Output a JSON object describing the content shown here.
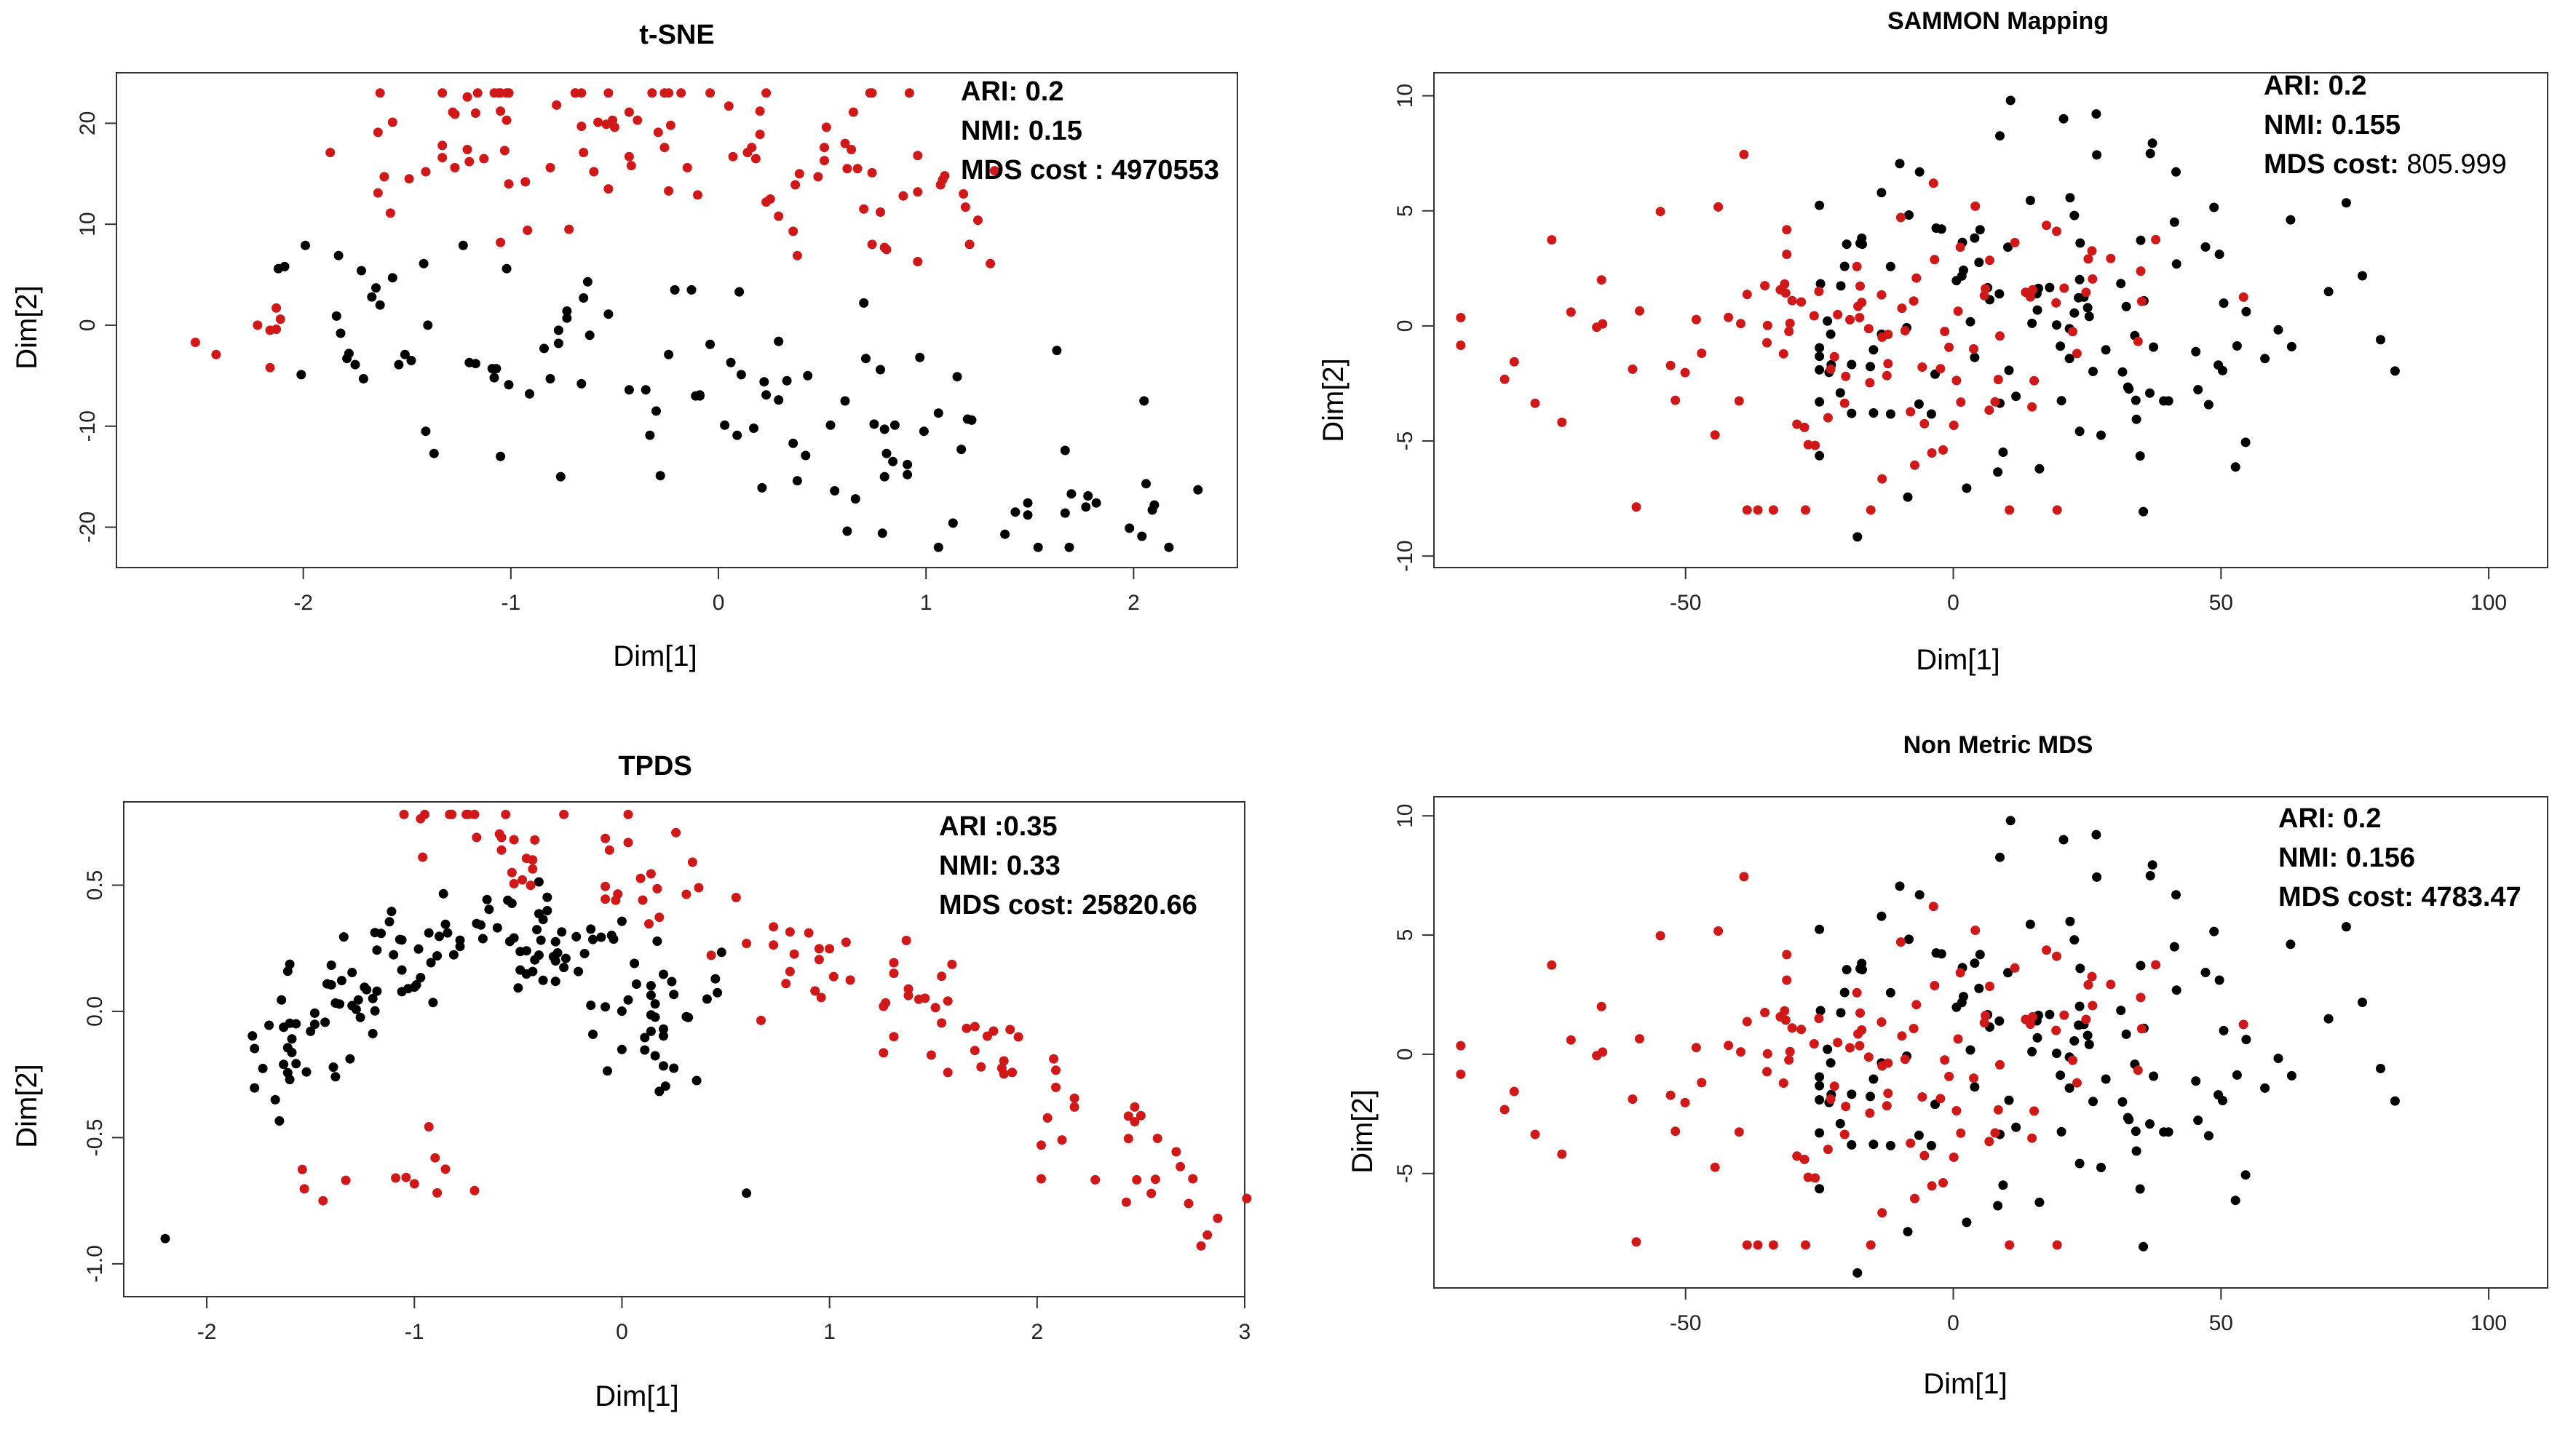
{
  "colors": {
    "cluster_a": "#000000",
    "cluster_b": "#d01818"
  },
  "chart_data": [
    {
      "type": "scatter",
      "title": "t-SNE",
      "xlabel": "Dim[1]",
      "ylabel": "Dim[2]",
      "xlim": [
        -2.9,
        2.5
      ],
      "ylim": [
        -24,
        25
      ],
      "xticks": [
        "-2",
        "-1",
        "0",
        "1",
        "2"
      ],
      "xtick_values": [
        -2,
        -1,
        0,
        1,
        2
      ],
      "yticks": [
        "-20",
        "-10",
        "0",
        "10",
        "20"
      ],
      "ytick_values": [
        -20,
        -10,
        0,
        10,
        20
      ],
      "annotations": [
        {
          "label": "ARI: 0.2",
          "value": ""
        },
        {
          "label": "NMI: 0.15",
          "value": ""
        },
        {
          "label": "MDS cost : 4970553",
          "value": ""
        }
      ],
      "generator": {
        "seed": 11,
        "mode": "tsne"
      },
      "series": [
        {
          "name": "cluster_a",
          "color": "#000000",
          "points": []
        },
        {
          "name": "cluster_b",
          "color": "#d01818",
          "points": []
        }
      ]
    },
    {
      "type": "scatter",
      "title": "SAMMON Mapping",
      "xlabel": "Dim[1]",
      "ylabel": "Dim[2]",
      "xlim": [
        -97,
        111
      ],
      "ylim": [
        -10.5,
        11
      ],
      "xticks": [
        "-50",
        "0",
        "50",
        "100"
      ],
      "xtick_values": [
        -50,
        0,
        50,
        100
      ],
      "yticks": [
        "-10",
        "-5",
        "0",
        "5",
        "10"
      ],
      "ytick_values": [
        -10,
        -5,
        0,
        5,
        10
      ],
      "annotations": [
        {
          "label": "ARI: 0.2",
          "value": ""
        },
        {
          "label": "NMI: 0.155",
          "value": ""
        },
        {
          "label": "MDS cost: ",
          "value": "805.999"
        }
      ],
      "generator": {
        "seed": 23,
        "mode": "mds"
      },
      "series": [
        {
          "name": "cluster_a",
          "color": "#000000",
          "points": []
        },
        {
          "name": "cluster_b",
          "color": "#d01818",
          "points": []
        }
      ]
    },
    {
      "type": "scatter",
      "title": "TPDS",
      "xlabel": "Dim[1]",
      "ylabel": "Dim[2]",
      "xlim": [
        -2.4,
        3.0
      ],
      "ylim": [
        -1.13,
        0.83
      ],
      "xticks": [
        "-2",
        "-1",
        "0",
        "1",
        "2",
        "3"
      ],
      "xtick_values": [
        -2,
        -1,
        0,
        1,
        2,
        3
      ],
      "yticks": [
        "-1.0",
        "-0.5",
        "0.0",
        "0.5"
      ],
      "ytick_values": [
        -1.0,
        -0.5,
        0.0,
        0.5
      ],
      "annotations": [
        {
          "label": "ARI :0.35",
          "value": ""
        },
        {
          "label": "NMI: 0.33",
          "value": ""
        },
        {
          "label": "MDS cost: 25820.66",
          "value": ""
        }
      ],
      "generator": {
        "seed": 37,
        "mode": "tpds"
      },
      "series": [
        {
          "name": "cluster_a",
          "color": "#000000",
          "points": []
        },
        {
          "name": "cluster_b",
          "color": "#d01818",
          "points": []
        }
      ]
    },
    {
      "type": "scatter",
      "title": "Non Metric MDS",
      "xlabel": "Dim[1]",
      "ylabel": "Dim[2]",
      "xlim": [
        -97,
        111
      ],
      "ylim": [
        -9.8,
        10.8
      ],
      "xticks": [
        "-50",
        "0",
        "50",
        "100"
      ],
      "xtick_values": [
        -50,
        0,
        50,
        100
      ],
      "yticks": [
        "-5",
        "0",
        "5",
        "10"
      ],
      "ytick_values": [
        -5,
        0,
        5,
        10
      ],
      "annotations": [
        {
          "label": "ARI: 0.2",
          "value": ""
        },
        {
          "label": "NMI: 0.156",
          "value": ""
        },
        {
          "label": "MDS cost: 4783.47",
          "value": ""
        }
      ],
      "generator": {
        "seed": 23,
        "mode": "mds"
      },
      "series": [
        {
          "name": "cluster_a",
          "color": "#000000",
          "points": []
        },
        {
          "name": "cluster_b",
          "color": "#d01818",
          "points": []
        }
      ]
    }
  ]
}
